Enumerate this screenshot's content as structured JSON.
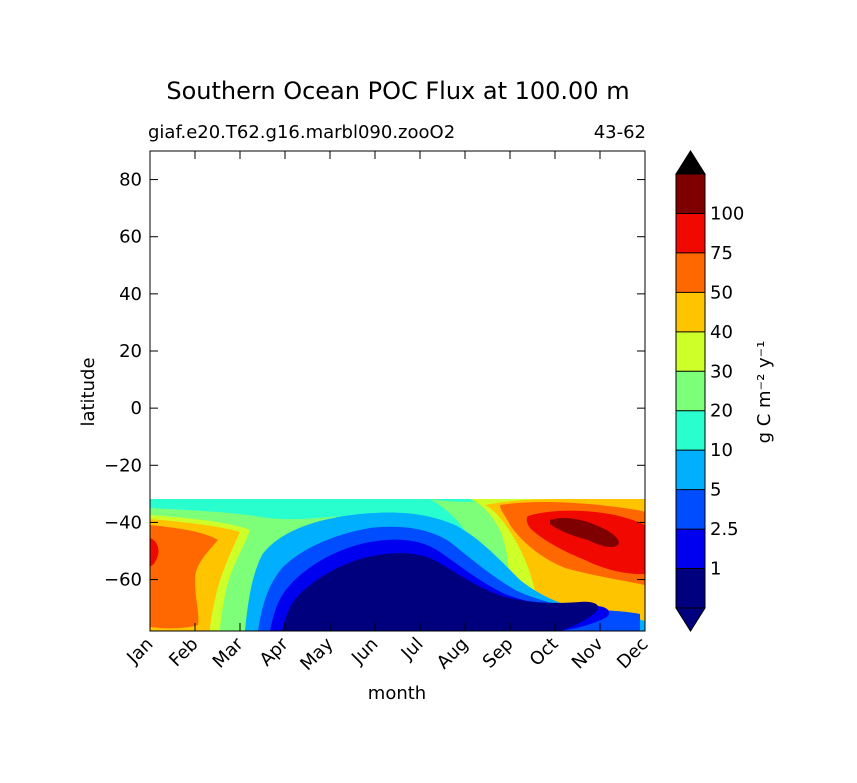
{
  "chart_data": {
    "type": "contourf",
    "title": "Southern Ocean POC Flux at 100.00 m",
    "subtitle_left": "giaf.e20.T62.g16.marbl090.zooO2",
    "subtitle_right": "43-62",
    "xlabel": "month",
    "ylabel": "latitude",
    "x_categories": [
      "Jan",
      "Feb",
      "Mar",
      "Apr",
      "May",
      "Jun",
      "Jul",
      "Aug",
      "Sep",
      "Oct",
      "Nov",
      "Dec"
    ],
    "xlim": [
      0,
      11
    ],
    "ylim": [
      -78,
      90
    ],
    "y_ticks": [
      80,
      60,
      40,
      20,
      0,
      -20,
      -40,
      -60
    ],
    "y_tick_labels": [
      "80",
      "60",
      "40",
      "20",
      "0",
      "−20",
      "−40",
      "−60"
    ],
    "data_lat_range": [
      -78,
      -33
    ],
    "colorbar": {
      "label": "g C m⁻² y⁻¹",
      "tick_labels": [
        "1",
        "2.5",
        "5",
        "10",
        "20",
        "30",
        "40",
        "50",
        "75",
        "100"
      ],
      "bands": [
        {
          "range": "<1",
          "color": "#00007f"
        },
        {
          "range": "1-2.5",
          "color": "#0000f1"
        },
        {
          "range": "2.5-5",
          "color": "#004cff"
        },
        {
          "range": "5-10",
          "color": "#00b0ff"
        },
        {
          "range": "10-20",
          "color": "#29ffce"
        },
        {
          "range": "20-30",
          "color": "#7dff7a"
        },
        {
          "range": "30-40",
          "color": "#ceff29"
        },
        {
          "range": "40-50",
          "color": "#ffc400"
        },
        {
          "range": "50-75",
          "color": "#ff6800"
        },
        {
          "range": "75-100",
          "color": "#f10800"
        },
        {
          "range": ">100",
          "color": "#7f0000"
        }
      ],
      "extend": "both"
    },
    "approx_regions": [
      {
        "period": "Jan-Feb",
        "lat": "-70 to -45",
        "level": "50-75"
      },
      {
        "period": "Jan",
        "lat": "-53 to -48",
        "level": "75-100"
      },
      {
        "period": "Apr-Sep",
        "lat": "-78 to -55",
        "level": "<1"
      },
      {
        "period": "Oct-Dec",
        "lat": "-60 to -37",
        "level": "50-75"
      },
      {
        "period": "Oct-Nov",
        "lat": "-48 to -40",
        "level": ">100"
      }
    ]
  }
}
